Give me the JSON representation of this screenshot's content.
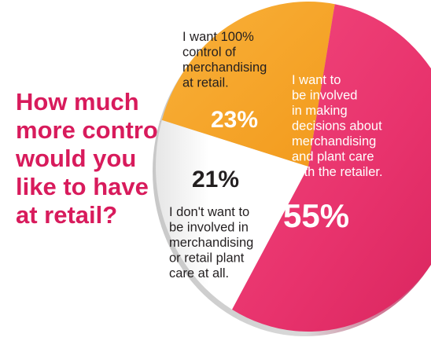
{
  "chart_data": {
    "type": "pie",
    "title": "How much more control would you like to have at retail?",
    "title_lines": [
      "How much",
      "more control",
      "would you",
      "like to have",
      "at retail?"
    ],
    "slices": [
      {
        "label": "I want 100% control of merchandising at retail.",
        "label_lines": [
          "I want 100%",
          "control of",
          "merchandising",
          "at retail."
        ],
        "value": 23,
        "value_label": "23%",
        "color": "#f6a523"
      },
      {
        "label": "I want to be involved in making decisions about merchandising and plant care with the retailer.",
        "label_lines": [
          "I want to",
          "be involved",
          "in making",
          "decisions about",
          "merchandising",
          "and plant care",
          "with the retailer."
        ],
        "value": 55,
        "value_label": "55%",
        "color": "#e8336d"
      },
      {
        "label": "I don't want to be involved in merchandising or retail plant care at all.",
        "label_lines": [
          "I don't want to",
          "be involved in",
          "merchandising",
          "or retail plant",
          "care at all."
        ],
        "value": 21,
        "value_label": "21%",
        "color": "#ffffff"
      }
    ]
  }
}
